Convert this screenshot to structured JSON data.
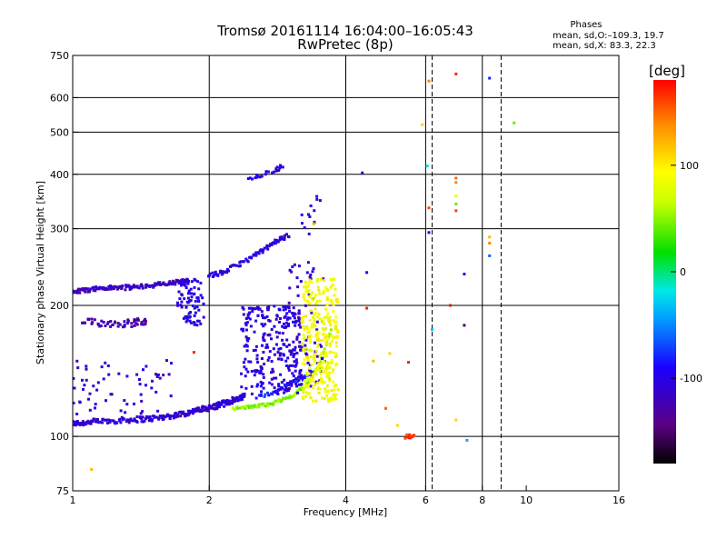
{
  "chart_data": {
    "type": "scatter",
    "title": "Tromsø 20161114 16:04:00–16:05:43",
    "subtitle": "RwPretec (8p)",
    "xlabel": "Frequency [MHz]",
    "ylabel": "Stationary phase Virtual Height [km]",
    "x_scale": "log",
    "y_scale": "log",
    "xlim": [
      1,
      16
    ],
    "ylim": [
      75,
      750
    ],
    "x_ticks": [
      1,
      2,
      4,
      6,
      8,
      10,
      16
    ],
    "x_tick_labels": [
      "1",
      "2",
      "4",
      "6",
      "8",
      "10",
      "16"
    ],
    "x_gridlines": [
      2,
      4,
      6,
      8
    ],
    "x_dashed_gridlines": [
      6.2,
      8.8
    ],
    "y_ticks": [
      75,
      100,
      200,
      300,
      400,
      500,
      600,
      750
    ],
    "y_tick_labels": [
      "75",
      "100",
      "200",
      "300",
      "400",
      "500",
      "600",
      "750"
    ],
    "y_gridlines": [
      100,
      200,
      300,
      400,
      500,
      600
    ],
    "grid": true,
    "phases_box": {
      "title": "Phases",
      "line_o": "mean, sd,O:–109.3, 19.7",
      "line_x": "mean, sd,X:  83.3, 22.3"
    },
    "colorbar": {
      "label": "[deg]",
      "min": -180,
      "max": 180,
      "ticks": [
        100,
        0,
        -100
      ],
      "tick_labels": [
        "100",
        "0",
        "-100"
      ],
      "colormap": "rainbow: black→purple→blue→cyan→green→yellow→orange→red"
    },
    "traces": [
      {
        "kind": "curve",
        "phase": -110,
        "x": [
          1.0,
          1.1,
          1.3,
          1.5,
          1.7,
          1.9,
          2.05,
          2.2,
          2.4
        ],
        "y": [
          107,
          108,
          109,
          110,
          112,
          115,
          117,
          120,
          124
        ],
        "n": 240,
        "spread": 0.015
      },
      {
        "kind": "curve",
        "phase": -115,
        "x": [
          1.0,
          1.15,
          1.35,
          1.6,
          1.8
        ],
        "y": [
          215,
          219,
          220,
          224,
          228
        ],
        "n": 130,
        "spread": 0.012
      },
      {
        "kind": "curve",
        "phase": -125,
        "x": [
          1.05,
          1.2,
          1.35,
          1.45
        ],
        "y": [
          183,
          182,
          182,
          185
        ],
        "n": 55,
        "spread": 0.02
      },
      {
        "kind": "curve",
        "phase": -105,
        "x": [
          2.0,
          2.15,
          2.35,
          2.6,
          2.8,
          3.0
        ],
        "y": [
          234,
          238,
          250,
          265,
          280,
          290
        ],
        "n": 80,
        "spread": 0.012
      },
      {
        "kind": "curve",
        "phase": -100,
        "x": [
          2.45,
          2.6,
          2.8,
          2.9
        ],
        "y": [
          392,
          398,
          408,
          420
        ],
        "n": 22,
        "spread": 0.012
      },
      {
        "kind": "curve",
        "phase": 50,
        "x": [
          2.25,
          2.5,
          2.75,
          3.0,
          3.25,
          3.5,
          3.7
        ],
        "y": [
          116,
          117,
          119,
          123,
          130,
          145,
          175
        ],
        "n": 90,
        "spread": 0.008
      },
      {
        "kind": "curve",
        "phase": -80,
        "x": [
          2.55,
          2.8,
          3.0,
          3.2,
          3.4
        ],
        "y": [
          123,
          127,
          132,
          136,
          140
        ],
        "n": 45,
        "spread": 0.01
      },
      {
        "kind": "cloud",
        "phase": -105,
        "xr": [
          2.35,
          3.2
        ],
        "yr": [
          125,
          200
        ],
        "n": 260
      },
      {
        "kind": "cloud",
        "phase": -100,
        "xr": [
          1.7,
          1.95
        ],
        "yr": [
          180,
          230
        ],
        "n": 75
      },
      {
        "kind": "cloud",
        "phase": -108,
        "xr": [
          3.0,
          3.6
        ],
        "yr": [
          130,
          255
        ],
        "n": 70
      },
      {
        "kind": "cloud",
        "phase": 90,
        "xr": [
          3.2,
          3.85
        ],
        "yr": [
          120,
          230
        ],
        "n": 300
      },
      {
        "kind": "cloud",
        "phase": -110,
        "xr": [
          1.0,
          1.65
        ],
        "yr": [
          112,
          150
        ],
        "n": 60
      },
      {
        "kind": "cloud",
        "phase": -100,
        "xr": [
          3.2,
          3.6
        ],
        "yr": [
          290,
          360
        ],
        "n": 12
      },
      {
        "kind": "cloud",
        "phase": 160,
        "xr": [
          5.4,
          5.7
        ],
        "yr": [
          99,
          101
        ],
        "n": 14
      }
    ],
    "scattered_points": [
      {
        "x": 1.1,
        "y": 84,
        "phase": 120
      },
      {
        "x": 1.85,
        "y": 156,
        "phase": 170
      },
      {
        "x": 3.4,
        "y": 308,
        "phase": 130
      },
      {
        "x": 4.35,
        "y": 403,
        "phase": -100
      },
      {
        "x": 4.45,
        "y": 238,
        "phase": -95
      },
      {
        "x": 4.45,
        "y": 197,
        "phase": 170
      },
      {
        "x": 4.6,
        "y": 149,
        "phase": 120
      },
      {
        "x": 5.0,
        "y": 155,
        "phase": 110
      },
      {
        "x": 4.9,
        "y": 116,
        "phase": 150
      },
      {
        "x": 5.2,
        "y": 106,
        "phase": 110
      },
      {
        "x": 5.5,
        "y": 148,
        "phase": 170
      },
      {
        "x": 5.9,
        "y": 520,
        "phase": 110
      },
      {
        "x": 6.1,
        "y": 655,
        "phase": 140
      },
      {
        "x": 6.05,
        "y": 418,
        "phase": -20
      },
      {
        "x": 6.1,
        "y": 335,
        "phase": 160
      },
      {
        "x": 6.1,
        "y": 294,
        "phase": -100
      },
      {
        "x": 6.8,
        "y": 200,
        "phase": 175
      },
      {
        "x": 7.0,
        "y": 680,
        "phase": 170
      },
      {
        "x": 7.0,
        "y": 392,
        "phase": 150
      },
      {
        "x": 7.0,
        "y": 383,
        "phase": 140
      },
      {
        "x": 7.0,
        "y": 357,
        "phase": 80
      },
      {
        "x": 7.0,
        "y": 342,
        "phase": 40
      },
      {
        "x": 7.0,
        "y": 330,
        "phase": 160
      },
      {
        "x": 7.0,
        "y": 109,
        "phase": 110
      },
      {
        "x": 7.3,
        "y": 180,
        "phase": -150
      },
      {
        "x": 7.3,
        "y": 236,
        "phase": -95
      },
      {
        "x": 7.4,
        "y": 98,
        "phase": -40
      },
      {
        "x": 8.3,
        "y": 665,
        "phase": -80
      },
      {
        "x": 8.3,
        "y": 287,
        "phase": 120
      },
      {
        "x": 8.3,
        "y": 278,
        "phase": 140
      },
      {
        "x": 8.3,
        "y": 260,
        "phase": -60
      },
      {
        "x": 9.4,
        "y": 525,
        "phase": 40
      },
      {
        "x": 6.2,
        "y": 176,
        "phase": -30
      }
    ]
  }
}
